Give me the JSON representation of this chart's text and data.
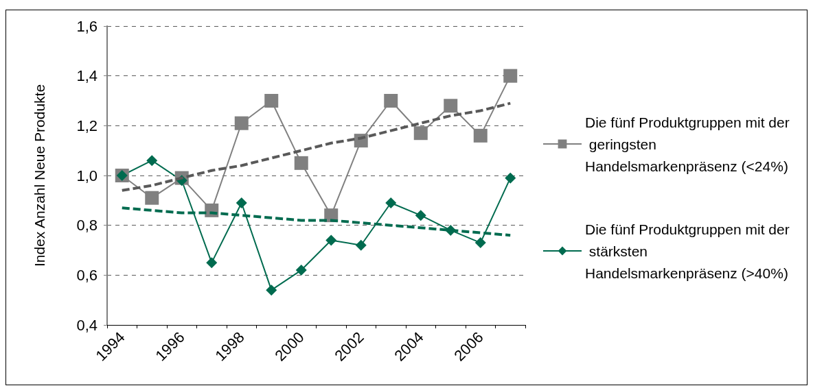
{
  "chart_data": {
    "type": "line",
    "ylabel": "Index Anzahl Neue Produkte",
    "categories": [
      "1994",
      null,
      "1996",
      null,
      "1998",
      null,
      "2000",
      null,
      "2002",
      null,
      "2004",
      null,
      "2006",
      null
    ],
    "series": [
      {
        "name": "Die fünf Produktgruppen mit der geringsten Handelsmarkenpräsenz (<24%)",
        "color": "#808080",
        "marker": "square",
        "line_style": "solid",
        "values": [
          1.0,
          0.91,
          0.99,
          0.86,
          1.21,
          1.3,
          1.05,
          0.84,
          1.14,
          1.3,
          1.17,
          1.28,
          1.16,
          1.4
        ]
      },
      {
        "name": "Die fünf Produktgruppen mit der stärksten Handelsmarkenpräsenz (>40%)",
        "color": "#006b4f",
        "marker": "diamond",
        "line_style": "solid",
        "values": [
          1.0,
          1.06,
          0.98,
          0.65,
          0.89,
          0.54,
          0.62,
          0.74,
          0.72,
          0.89,
          0.84,
          0.78,
          0.73,
          0.99
        ]
      },
      {
        "color": "#595959",
        "marker": "none",
        "line_style": "dashed",
        "values": [
          0.94,
          0.96,
          0.99,
          1.02,
          1.04,
          1.07,
          1.1,
          1.13,
          1.15,
          1.18,
          1.21,
          1.24,
          1.26,
          1.29
        ]
      },
      {
        "color": "#006b4f",
        "marker": "none",
        "line_style": "dashed",
        "values": [
          0.87,
          0.86,
          0.85,
          0.85,
          0.84,
          0.83,
          0.82,
          0.82,
          0.81,
          0.8,
          0.79,
          0.78,
          0.77,
          0.76
        ]
      }
    ],
    "ylim": [
      0.4,
      1.6
    ],
    "yticks": [
      {
        "value": 0.4,
        "label": "0,4"
      },
      {
        "value": 0.6,
        "label": "0,6"
      },
      {
        "value": 0.8,
        "label": "0,8"
      },
      {
        "value": 1.0,
        "label": "1,0"
      },
      {
        "value": 1.2,
        "label": "1,2"
      },
      {
        "value": 1.4,
        "label": "1,4"
      },
      {
        "value": 1.6,
        "label": "1,6"
      }
    ],
    "grid": "y",
    "legend": "right"
  }
}
